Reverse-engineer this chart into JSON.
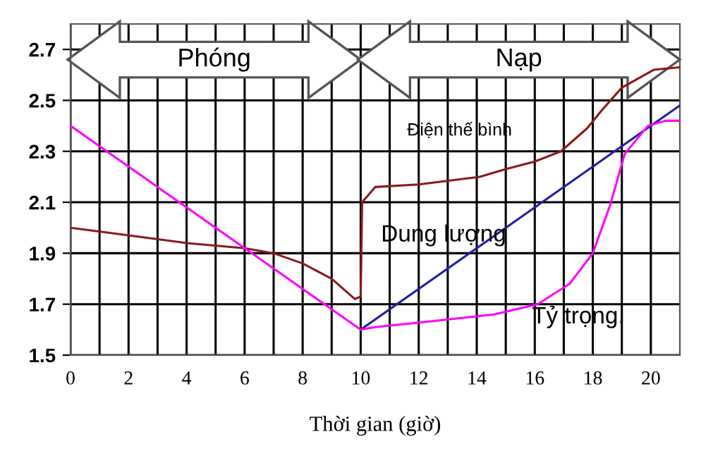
{
  "chart_data": {
    "type": "line",
    "xlabel": "Thời gian (giờ)",
    "xlim": [
      0,
      21
    ],
    "ylim": [
      1.5,
      2.8
    ],
    "xticks": [
      0,
      {
        "value": 1,
        "label": null
      },
      2,
      {
        "value": 3,
        "label": null
      },
      4,
      {
        "value": 5,
        "label": null
      },
      6,
      {
        "value": 7,
        "label": null
      },
      8,
      {
        "value": 9,
        "label": null
      },
      10,
      {
        "value": 11,
        "label": null
      },
      12,
      {
        "value": 13,
        "label": null
      },
      14,
      {
        "value": 15,
        "label": null
      },
      16,
      {
        "value": 17,
        "label": null
      },
      18,
      {
        "value": 19,
        "label": null
      },
      20
    ],
    "yticks": [
      1.5,
      1.7,
      1.9,
      2.1,
      2.3,
      2.5,
      2.7
    ],
    "grid": true,
    "legend": false,
    "marker": "none",
    "line_style": "solid",
    "annotations": [
      "Phóng",
      "Nạp"
    ],
    "series": [
      {
        "name": "Điện thế bình",
        "color": "#8b1a1a",
        "x": [
          0,
          2,
          4,
          6,
          7,
          8,
          9,
          9.5,
          9.8,
          10,
          10.05,
          10.5,
          12,
          14.1,
          15,
          16,
          16.9,
          17.8,
          18.3,
          19,
          20.1,
          21
        ],
        "values": [
          2.0,
          1.97,
          1.94,
          1.92,
          1.9,
          1.86,
          1.8,
          1.75,
          1.72,
          1.73,
          2.1,
          2.16,
          2.17,
          2.2,
          2.23,
          2.26,
          2.3,
          2.39,
          2.46,
          2.55,
          2.62,
          2.63
        ]
      },
      {
        "name": "Dung lượng",
        "color": "#2020a0",
        "x": [
          10,
          21
        ],
        "values": [
          1.6,
          2.48
        ]
      },
      {
        "name": "Tỷ trọng.",
        "color": "#ff00ff",
        "x": [
          0,
          10,
          10.5,
          12.2,
          14.6,
          16.1,
          17.2,
          18,
          18.6,
          19.1,
          19.9,
          20.5,
          21
        ],
        "values": [
          2.4,
          1.6,
          1.61,
          1.63,
          1.66,
          1.7,
          1.78,
          1.9,
          2.09,
          2.29,
          2.4,
          2.42,
          2.42
        ]
      }
    ]
  }
}
